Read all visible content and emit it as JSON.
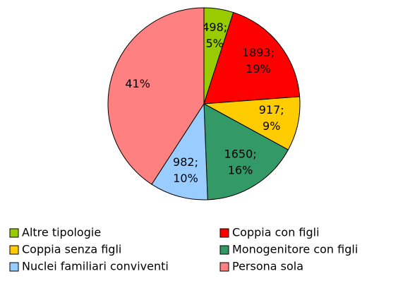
{
  "chart_data": {
    "type": "pie",
    "categories": [
      "Altre tipologie",
      "Coppia con figli",
      "Coppia senza figli",
      "Monogenitore con figli",
      "Nuclei familiari conviventi",
      "Persona sola"
    ],
    "values": [
      498,
      1893,
      917,
      1650,
      982,
      4100
    ],
    "value_labels": [
      [
        "498;",
        "5%"
      ],
      [
        "1893;",
        "19%"
      ],
      [
        "917;",
        "9%"
      ],
      [
        "1650;",
        "16%"
      ],
      [
        "982;",
        "10%"
      ],
      [
        "41%"
      ]
    ],
    "colors": [
      "#99cc00",
      "#ff0000",
      "#ffcc00",
      "#339966",
      "#99ccff",
      "#ff8080"
    ],
    "legend": "bottom"
  }
}
